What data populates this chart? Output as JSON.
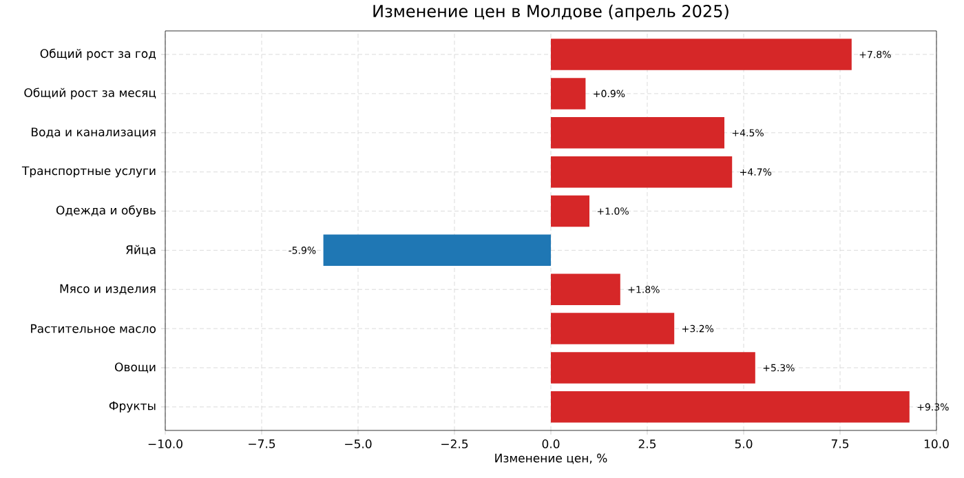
{
  "chart_data": {
    "type": "bar",
    "orientation": "horizontal",
    "title": "Изменение цен в Молдове (апрель 2025)",
    "xlabel": "Изменение цен, %",
    "categories": [
      "Общий рост за год",
      "Общий рост за месяц",
      "Вода и канализация",
      "Транспортные услуги",
      "Одежда и обувь",
      "Яйца",
      "Мясо и изделия",
      "Растительное масло",
      "Овощи",
      "Фрукты"
    ],
    "values": [
      7.8,
      0.9,
      4.5,
      4.7,
      1.0,
      -5.9,
      1.8,
      3.2,
      5.3,
      9.3
    ],
    "colors": [
      "#d62728",
      "#d62728",
      "#d62728",
      "#d62728",
      "#d62728",
      "#1f77b4",
      "#d62728",
      "#d62728",
      "#d62728",
      "#d62728"
    ],
    "value_labels": [
      "+7.8%",
      "+0.9%",
      "+4.5%",
      "+4.7%",
      "+1.0%",
      "-5.9%",
      "+1.8%",
      "+3.2%",
      "+5.3%",
      "+9.3%"
    ],
    "xlim": [
      -10,
      10
    ],
    "xticks": [
      {
        "value": -10,
        "label": "−10.0"
      },
      {
        "value": -7.5,
        "label": "−7.5"
      },
      {
        "value": -5,
        "label": "−5.0"
      },
      {
        "value": -2.5,
        "label": "−2.5"
      },
      {
        "value": 0,
        "label": "0.0"
      },
      {
        "value": 2.5,
        "label": "2.5"
      },
      {
        "value": 5,
        "label": "5.0"
      },
      {
        "value": 7.5,
        "label": "7.5"
      },
      {
        "value": 10,
        "label": "10.0"
      }
    ],
    "grid": true
  }
}
